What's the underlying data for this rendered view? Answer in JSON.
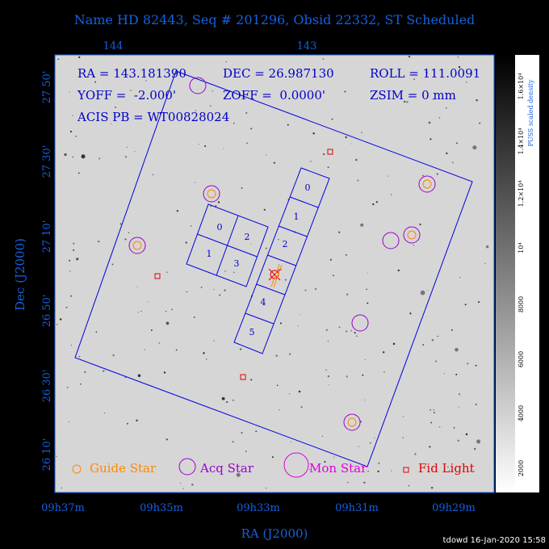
{
  "title": "Name HD 82443, Seq # 201296, Obsid 22332, ST Scheduled",
  "info": [
    "RA = 143.181390",
    "DEC = 26.987130",
    "ROLL = 111.0091",
    "YOFF =  -2.000'",
    "ZOFF =  0.0000'",
    "ZSIM = 0 mm",
    "ACIS PB = WT00828024"
  ],
  "top_ticks": [
    "144",
    "143"
  ],
  "bottom_ticks": [
    "09h37m",
    "09h35m",
    "09h33m",
    "09h31m",
    "09h29m"
  ],
  "x_axis_label": "RA (J2000)",
  "left_ticks": [
    "27 50'",
    "27 30'",
    "27 10'",
    "26 50'",
    "26 30'",
    "26 10'"
  ],
  "y_axis_label": "Dec (J2000)",
  "acis_i_chips": [
    "0",
    "2",
    "1",
    "3"
  ],
  "acis_s_chips": [
    "0",
    "1",
    "2",
    "4",
    "5"
  ],
  "legend": [
    "Guide Star",
    "Acq Star",
    "Mon Star",
    "Fid Light"
  ],
  "colorbar_ticks": [
    "2000",
    "4000",
    "6000",
    "8000",
    "10⁴",
    "1.2×10⁴",
    "1.4×10⁴",
    "1.6×10⁴"
  ],
  "colorbar_label": "PUSS scaled density",
  "footer": "tdowd 16-Jan-2020 15:58"
}
